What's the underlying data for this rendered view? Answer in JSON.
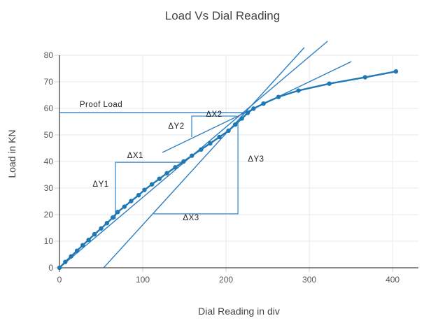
{
  "chart_data": {
    "type": "line",
    "title": "Load Vs Dial Reading",
    "xlabel": "Dial Reading in div",
    "ylabel": "Load in KN",
    "xlim": [
      0,
      431
    ],
    "ylim": [
      0,
      80
    ],
    "x_ticks": [
      0,
      100,
      200,
      300,
      400
    ],
    "y_ticks": [
      0,
      10,
      20,
      30,
      40,
      50,
      60,
      70,
      80
    ],
    "grid": true,
    "legend": "none",
    "series": [
      {
        "name": "Load vs Dial Reading",
        "points": [
          [
            0,
            0
          ],
          [
            7,
            2.2
          ],
          [
            14,
            4.3
          ],
          [
            21,
            6.4
          ],
          [
            28,
            8.5
          ],
          [
            35,
            10.5
          ],
          [
            42,
            12.6
          ],
          [
            50,
            14.8
          ],
          [
            57,
            16.8
          ],
          [
            64,
            18.9
          ],
          [
            70,
            21.0
          ],
          [
            78,
            23.0
          ],
          [
            86,
            25.1
          ],
          [
            95,
            27.3
          ],
          [
            102,
            29.3
          ],
          [
            111,
            31.4
          ],
          [
            120,
            33.5
          ],
          [
            129,
            35.6
          ],
          [
            139,
            37.8
          ],
          [
            149,
            40.0
          ],
          [
            159,
            42.2
          ],
          [
            170,
            44.5
          ],
          [
            181,
            46.8
          ],
          [
            192,
            49.2
          ],
          [
            203,
            51.6
          ],
          [
            211,
            53.9
          ],
          [
            219,
            56.2
          ],
          [
            226,
            58.3
          ],
          [
            233,
            59.9
          ],
          [
            245,
            61.8
          ],
          [
            263,
            64.3
          ],
          [
            287,
            66.7
          ],
          [
            324,
            69.3
          ],
          [
            367,
            71.7
          ],
          [
            404,
            73.9
          ]
        ]
      }
    ],
    "tangent_lines": [
      {
        "name": "initial-slope-line",
        "from": [
          0,
          0
        ],
        "to": [
          322,
          85.3
        ]
      },
      {
        "name": "offset-slope-line",
        "from": [
          53,
          0
        ],
        "to": [
          294,
          82.9
        ]
      },
      {
        "name": "final-slope-line",
        "from": [
          123.5,
          43.4
        ],
        "to": [
          350.4,
          77.6
        ]
      }
    ],
    "slope_guides": [
      {
        "name": "slope-guide-1",
        "points": [
          [
            67.2,
            18.4
          ],
          [
            67.2,
            39.7
          ],
          [
            151.3,
            39.7
          ]
        ]
      },
      {
        "name": "slope-guide-2",
        "points": [
          [
            158.8,
            49.2
          ],
          [
            158.8,
            57.1
          ],
          [
            212.6,
            57.1
          ]
        ]
      },
      {
        "name": "slope-guide-3",
        "points": [
          [
            111.8,
            20.3
          ],
          [
            214.3,
            20.3
          ],
          [
            214.3,
            55.8
          ]
        ]
      }
    ],
    "proof_load": {
      "label": "Proof Load",
      "value_kn": 58.4,
      "x_start": 0,
      "x_end": 225,
      "label_x": 50,
      "label_y": 61.6
    },
    "annotations": [
      {
        "text": "ΔX1",
        "x": 91,
        "y": 42.4
      },
      {
        "text": "ΔY1",
        "x": 49.6,
        "y": 31.6
      },
      {
        "text": "ΔX2",
        "x": 185.7,
        "y": 57.9
      },
      {
        "text": "ΔY2",
        "x": 140.3,
        "y": 53.4
      },
      {
        "text": "ΔX3",
        "x": 158,
        "y": 18.9
      },
      {
        "text": "ΔY3",
        "x": 236,
        "y": 41
      }
    ],
    "colors": {
      "curve": "#1f77b4",
      "tangent": "#2e7fc2",
      "guide": "#4a94d9",
      "proof": "#2e7fc2",
      "grid": "#e8e8e8",
      "axis": "#444444",
      "tick": "#cfcfcf",
      "tick_text": "#555555",
      "annotation_text": "#222222"
    }
  }
}
